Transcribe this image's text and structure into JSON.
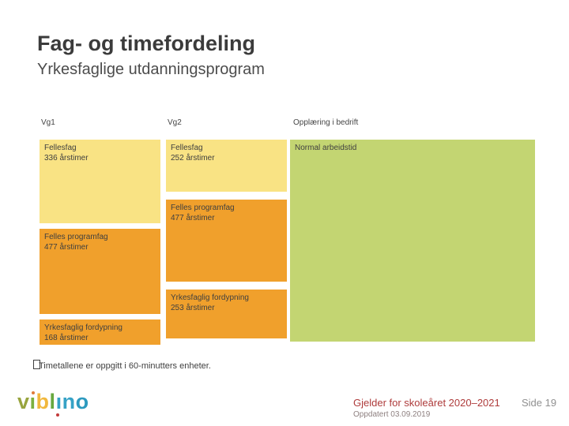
{
  "slide": {
    "title": "Fag- og timefordeling",
    "subtitle": "Yrkesfaglige utdanningsprogram"
  },
  "columns": [
    {
      "header": "Vg1",
      "blocks": [
        {
          "label": "Fellesfag",
          "hours": "336 årstimer"
        },
        {
          "label": "Felles programfag",
          "hours": "477 årstimer"
        },
        {
          "label": "Yrkesfaglig fordypning",
          "hours": "168 årstimer"
        }
      ]
    },
    {
      "header": "Vg2",
      "blocks": [
        {
          "label": "Fellesfag",
          "hours": "252 årstimer"
        },
        {
          "label": "Felles programfag",
          "hours": "477 årstimer"
        },
        {
          "label": "Yrkesfaglig fordypning",
          "hours": "253 årstimer"
        }
      ]
    },
    {
      "header": "Opplæring i bedrift",
      "blocks": [
        {
          "label": "Normal arbeidstid",
          "hours": ""
        }
      ]
    }
  ],
  "note": {
    "bullet": "□",
    "text": "Timetallene er oppgitt i 60-minutters enheter."
  },
  "footer": {
    "validity": "Gjelder for skoleåret 2020–2021",
    "page": "Side 19",
    "updated": "Oppdatert 03.09.2019"
  },
  "logo": {
    "name": "vilbli-no",
    "letters": [
      {
        "ch": "v",
        "color": "#98a43e"
      },
      {
        "ch": "i",
        "color": "#7cb03f",
        "dot": "above",
        "dot_color": "#e07b39"
      },
      {
        "ch": "b",
        "color": "#f1b83d"
      },
      {
        "ch": "l",
        "color": "#67a83e"
      },
      {
        "ch": "i",
        "color": "#36a2c6",
        "dot": "below",
        "dot_color": "#c23b3b"
      },
      {
        "ch": "n",
        "color": "#36a2c6"
      },
      {
        "ch": "o",
        "color": "#2d9abf"
      }
    ]
  },
  "colors": {
    "block_yellow": "#f9e384",
    "block_orange": "#f0a02c",
    "block_green": "#c3d572",
    "accent_red": "#ae3b3b",
    "text_dark": "#3f3f3f"
  }
}
